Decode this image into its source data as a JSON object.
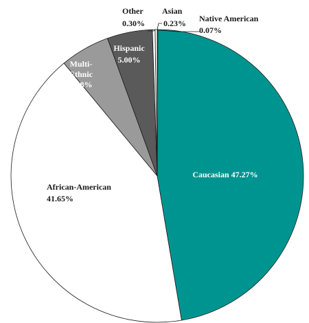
{
  "chart_data": {
    "type": "pie",
    "slices": [
      {
        "name": "Native American",
        "value": 0.07,
        "label": "0.07%",
        "color": "#ffffff"
      },
      {
        "name": "Caucasian",
        "value": 47.27,
        "label": "47.27%",
        "color": "#009490"
      },
      {
        "name": "African-American",
        "value": 41.65,
        "label": "41.65%",
        "color": "#ffffff"
      },
      {
        "name": "Multi-Ethnic",
        "value": 5.48,
        "label": "5.48%",
        "color": "#9a9a9a"
      },
      {
        "name": "Hispanic",
        "value": 5.0,
        "label": "5.00%",
        "color": "#5a5a5a"
      },
      {
        "name": "Other",
        "value": 0.3,
        "label": "0.30%",
        "color": "#ffffff"
      },
      {
        "name": "Asian",
        "value": 0.23,
        "label": "0.23%",
        "color": "#ffffff"
      }
    ],
    "label_texts": {
      "caucasian": "Caucasian 47.27%",
      "african_american_name": "African-American",
      "african_american_pct": "41.65%",
      "multi_ethnic_line1": "Multi-",
      "multi_ethnic_line2": "Ethnic",
      "multi_ethnic_pct": "5.48%",
      "hispanic_name": "Hispanic",
      "hispanic_pct": "5.00%",
      "other_name": "Other",
      "other_pct": "0.30%",
      "asian_name": "Asian",
      "asian_pct": "0.23%",
      "native_name": "Native American",
      "native_pct": "0.07%"
    },
    "legend": "none",
    "grid": false
  }
}
